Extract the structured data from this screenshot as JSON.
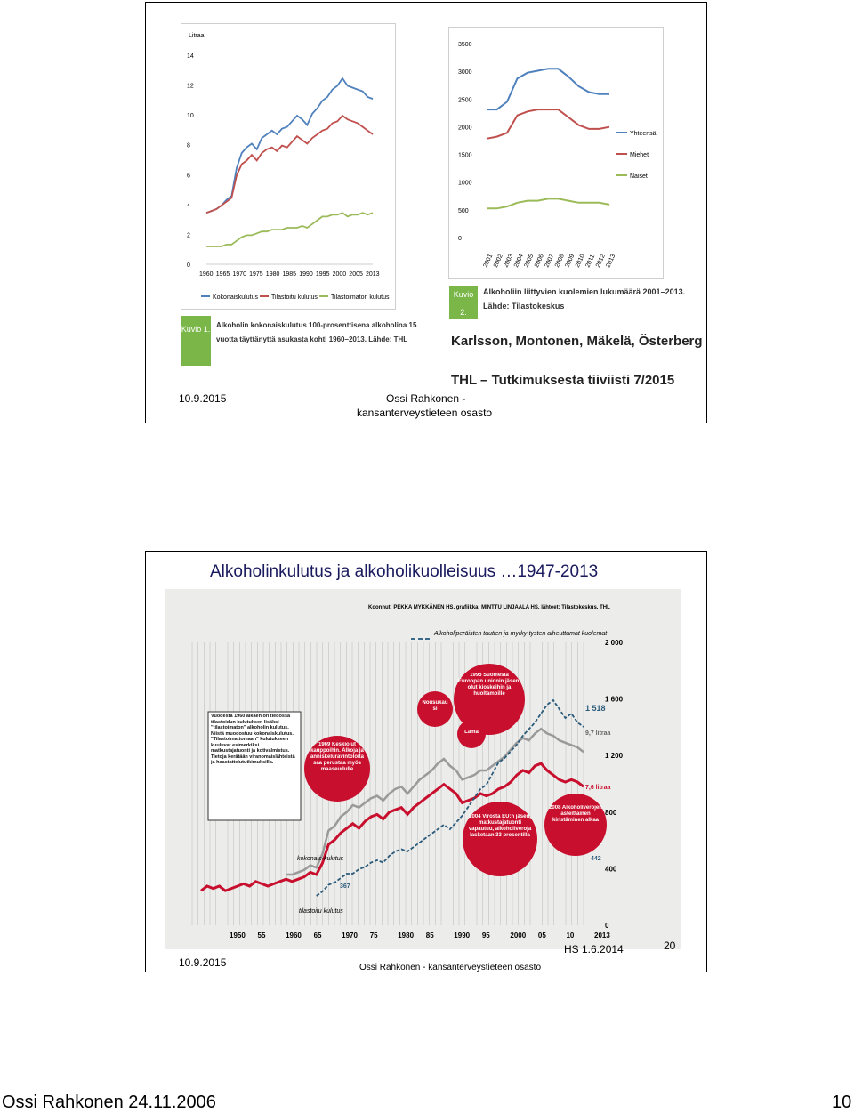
{
  "slide1": {
    "chart_left": {
      "unit_label": "Litraa",
      "y_ticks": [
        "14",
        "12",
        "10",
        "8",
        "6",
        "4",
        "2",
        "0"
      ],
      "x_ticks": [
        "1960",
        "1965",
        "1970",
        "1975",
        "1980",
        "1985",
        "1990",
        "1995",
        "2000",
        "2005",
        "2013"
      ],
      "legend": [
        "Kokonaiskulutus",
        "Tilastoitu kulutus",
        "Tilastoimaton kulutus"
      ],
      "colors": {
        "total": "#4f81bd",
        "recorded": "#c0504d",
        "unrecorded": "#9bbb59"
      }
    },
    "caption_left": {
      "badge": "Kuvio 1.",
      "text_lines": [
        "Alkoholin kokonaiskulutus 100-prosenttisena alkoholina 15",
        "vuotta täyttänyttä asukasta kohti 1960–2013. Lähde: THL"
      ]
    },
    "chart_right": {
      "y_ticks": [
        "3500",
        "3000",
        "2500",
        "2000",
        "1500",
        "1000",
        "500",
        "0"
      ],
      "x_ticks": [
        "2001",
        "2002",
        "2003",
        "2004",
        "2005",
        "2006",
        "2007",
        "2008",
        "2009",
        "2010",
        "2011",
        "2012",
        "2013"
      ],
      "legend": [
        "Yhteensä",
        "Miehet",
        "Naiset"
      ]
    },
    "caption_right": {
      "badge": "Kuvio 2.",
      "text_lines": [
        "Alkoholiin liittyvien kuolemien lukumäärä 2001–2013.",
        "Lähde: Tilastokeskus"
      ]
    },
    "authors": "Karlsson, Montonen, Mäkelä, Österberg",
    "publication": "THL – Tutkimuksesta tiiviisti 7/2015",
    "footer_date": "10.9.2015",
    "footer_author_1": "Ossi Rahkonen -",
    "footer_author_2": "kansanterveystieteen osasto"
  },
  "slide2": {
    "title": "Alkoholinkulutus ja alkoholikuolleisuus …1947-2013",
    "source_line": "Koonnut: PEKKA MYKKÄNEN HS, grafiikka: MINTTU LINJAALA HS, lähteet: Tilastokeskus, THL",
    "legend_text": "Alkoholiperäisten tautien ja myrky-tysten aiheuttamat kuolemat",
    "right_ticks": [
      "2 000",
      "1 600",
      "1 200",
      "800",
      "400",
      "0"
    ],
    "x_ticks": [
      "1950",
      "55",
      "1960",
      "65",
      "1970",
      "75",
      "1980",
      "85",
      "1990",
      "95",
      "2000",
      "05",
      "10",
      "2013"
    ],
    "value_labels": {
      "deaths": "1 518",
      "total": "9,7 litraa",
      "recorded": "7,6 litraa",
      "low": "442",
      "start": "367"
    },
    "series_labels": {
      "total": "kokonais-kulutus",
      "recorded": "tilastoitu kulutus"
    },
    "note_box": "Vuodesta 1960 alkaen on tiedossa tilastoidun kulutuksen lisäksi \"tilastoimaton\" alkoholin kulutus. Niistä muodostuu kokonaiskulutus. \"Tilastoimattomaan\" kulutukseen kuuluvat esimerkiksi matkustajatuonti ja kotivalmistus. Tietoja kerätään viranomaislähteistä ja haastattelututkimuksilla.",
    "bubbles": {
      "b1969": "1969 Keskiolut kauppoihin. Alkoja ja anniskeluravintoloita saa perustaa myös maaseudulle",
      "b_nousu": "Nousukausi",
      "b1995": "1995 Suomesta Euroopan unionin jäsen, olut kioskeihin ja huoltamoille",
      "b_lama": "Lama",
      "b2004": "2004 Virosta EU:n jäsen, matkustajatuonti vapautuu, alkoholiveroja lasketaan 33 prosentilla",
      "b2008": "2008 Alkoholiverojen asteittainen kiristäminen alkaa"
    },
    "footer_date": "10.9.2015",
    "footer_author": "Ossi Rahkonen - kansanterveystieteen osasto",
    "source_tag": "HS 1.6.2014",
    "slide_number": "20"
  },
  "page_footer": {
    "left": "Ossi Rahkonen 24.11.2006",
    "right": "10"
  }
}
